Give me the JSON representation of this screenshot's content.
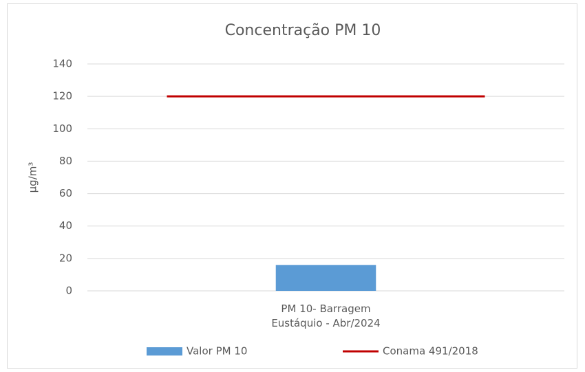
{
  "chart_data": {
    "type": "bar",
    "title": "Concentração PM 10",
    "y_label": "µg/m³",
    "categories": [
      "PM 10- Barragem Eustáquio - Abr/2024"
    ],
    "series": [
      {
        "name": "Valor PM 10",
        "type": "bar",
        "color": "#5b9bd5",
        "values": [
          16
        ]
      },
      {
        "name": "Conama 491/2018",
        "type": "line",
        "color": "#c00000",
        "values": [
          120
        ]
      }
    ],
    "ylim": [
      0,
      140
    ],
    "yticks": [
      0,
      20,
      40,
      60,
      80,
      100,
      120,
      140
    ],
    "grid": true,
    "legend": "bottom"
  }
}
